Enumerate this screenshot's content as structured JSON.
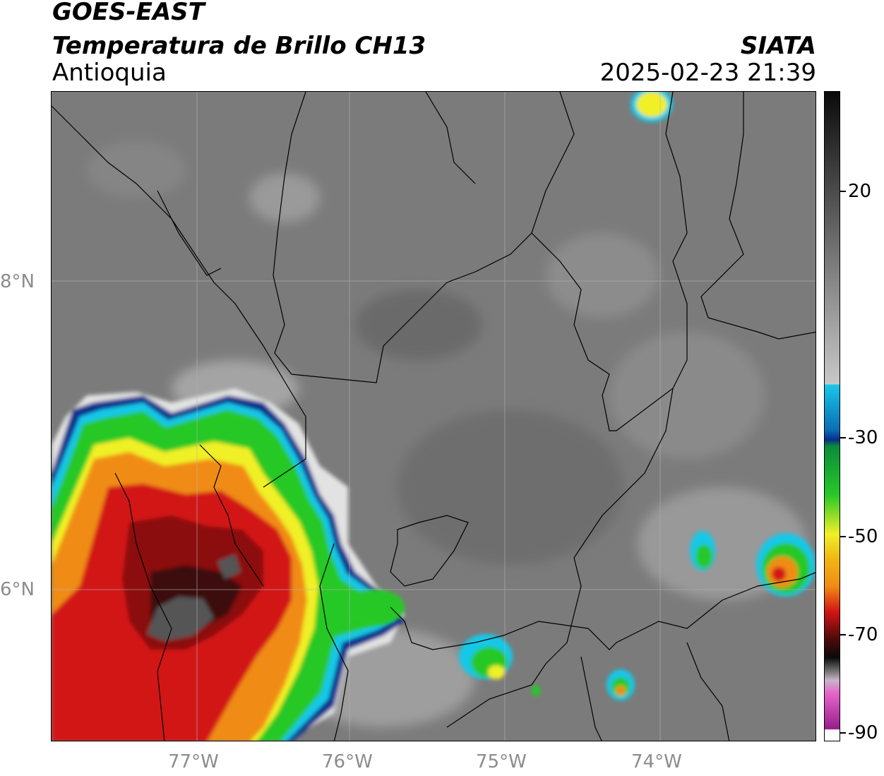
{
  "header": {
    "satellite": "GOES-EAST",
    "product": "Temperatura de Brillo CH13",
    "region": "Antioquia",
    "agency": "SIATA",
    "datetime": "2025-02-23 21:39"
  },
  "map": {
    "lon_labels": [
      "77°W",
      "76°W",
      "75°W",
      "74°W"
    ],
    "lat_labels": [
      "8°N",
      "6°N"
    ],
    "gridlines": true
  },
  "colorbar": {
    "tick_labels": [
      "20",
      "-30",
      "-50",
      "-70",
      "-90"
    ],
    "colors": {
      "warm_gray": "#7a7a7a",
      "cold_cyan": "#19c8e8",
      "blue": "#0a2d8c",
      "green": "#28c828",
      "yellow": "#f0f028",
      "orange": "#f08c14",
      "red": "#d21414",
      "dark_red": "#500a0a",
      "black": "#0a0a0a",
      "pink": "#d250b4",
      "purple": "#961e8c"
    }
  }
}
